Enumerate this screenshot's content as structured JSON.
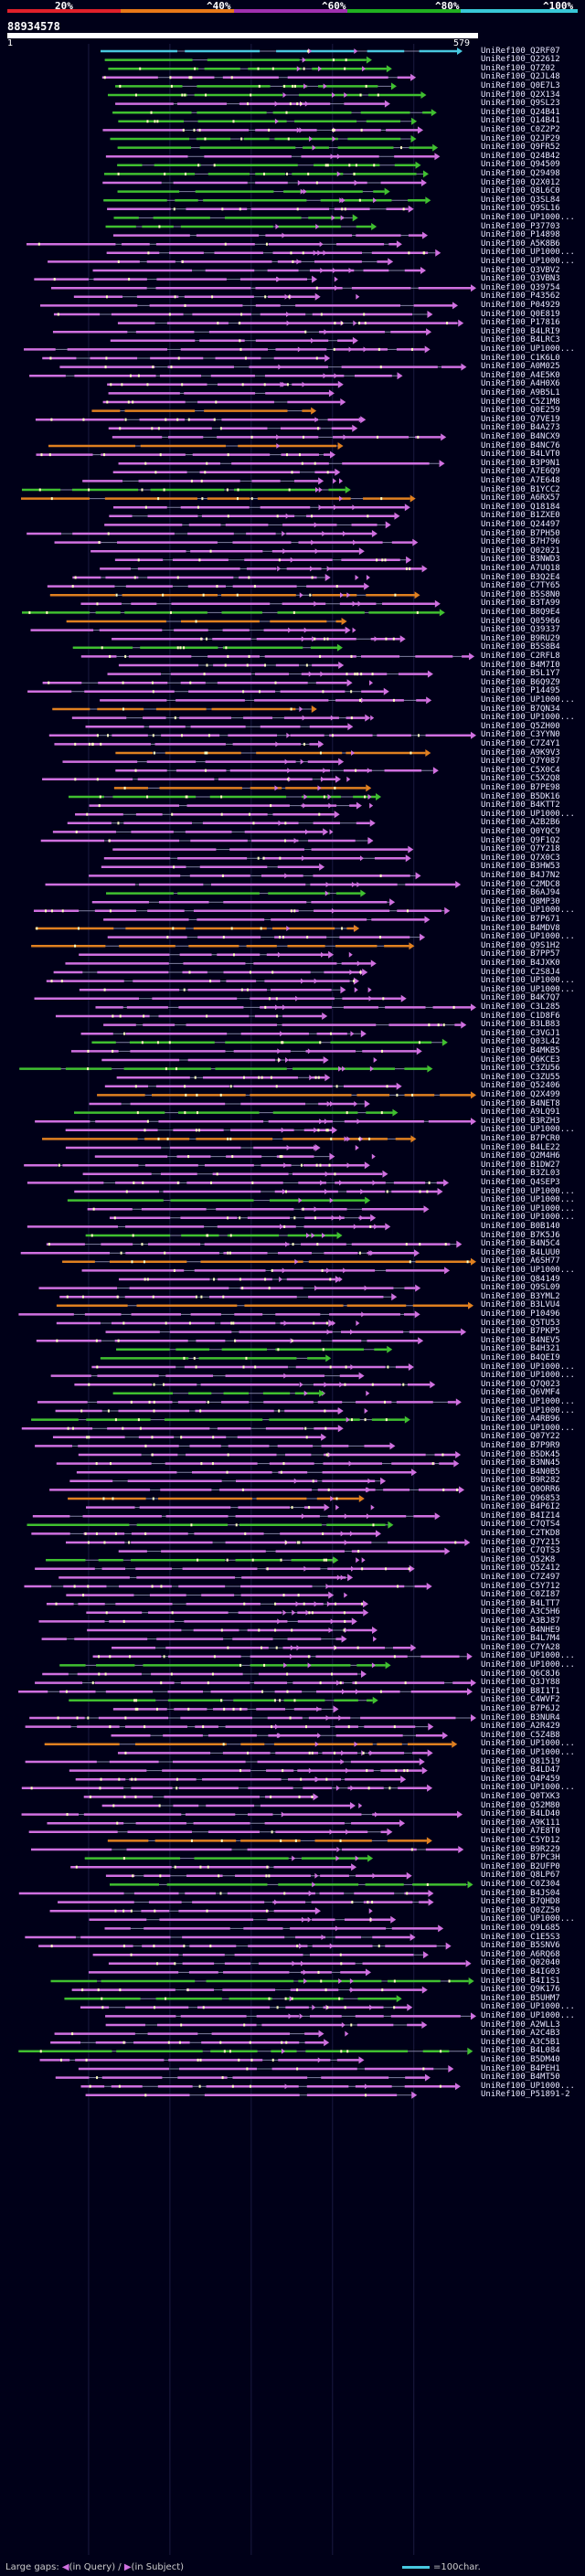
{
  "query": {
    "id": "88934578",
    "start_label": "1",
    "end_label": "579",
    "length": 579
  },
  "colors": {
    "background": "#000018",
    "identity_bins": [
      "#e0202a",
      "#e87818",
      "#a030b0",
      "#20b020",
      "#38c8d8"
    ],
    "plum": "#d070e0",
    "green": "#40c030",
    "cyan": "#48c8e0",
    "orange": "#e08020",
    "mismatch": "#ffffc0",
    "gap_line": "#8080a0"
  },
  "identity_scale": {
    "labels": [
      "20%",
      "^40%",
      "^60%",
      "^80%",
      "^100%"
    ]
  },
  "legend": {
    "large_gaps": "Large gaps: ",
    "in_query": "(in Query)",
    "in_subject": "(in Subject)",
    "scale": "=100char."
  },
  "hits": [
    "UniRef100_Q2RF07",
    "UniRef100_Q22612",
    "UniRef100_Q7Z02",
    "UniRef100_Q2JL48",
    "UniRef100_Q0E7L3",
    "UniRef100_Q2X134",
    "UniRef100_Q9SL23",
    "UniRef100_Q24B41",
    "UniRef100_Q14B41",
    "UniRef100_C0Z2P2",
    "UniRef100_Q2JP29",
    "UniRef100_Q9FR52",
    "UniRef100_Q24B42",
    "UniRef100_Q94509",
    "UniRef100_Q29498",
    "UniRef100_Q2X012",
    "UniRef100_Q8L6C0",
    "UniRef100_Q3SL84",
    "UniRef100_Q9SL16",
    "UniRef100_UP1000...",
    "UniRef100_P37703",
    "UniRef100_P14898",
    "UniRef100_A5K8B6",
    "UniRef100_UP1000...",
    "UniRef100_UP1000...",
    "UniRef100_Q3VBV2",
    "UniRef100_Q3VBN3",
    "UniRef100_Q39754",
    "UniRef100_P43562",
    "UniRef100_P04929",
    "UniRef100_Q0E819",
    "UniRef100_P17816",
    "UniRef100_B4LRI9",
    "UniRef100_B4LRC3",
    "UniRef100_UP1000...",
    "UniRef100_C1K6L0",
    "UniRef100_A0M025",
    "UniRef100_A4E5K0",
    "UniRef100_A4H0X6",
    "UniRef100_A9B5L1",
    "UniRef100_C5Z1M8",
    "UniRef100_Q0E259",
    "UniRef100_Q7VE19",
    "UniRef100_B4A273",
    "UniRef100_B4NCX9",
    "UniRef100_B4NC76",
    "UniRef100_B4LVT0",
    "UniRef100_B3P9N1",
    "UniRef100_A7E6Q9",
    "UniRef100_A7E648",
    "UniRef100_B1YCC2",
    "UniRef100_A6RX57",
    "UniRef100_Q18184",
    "UniRef100_B1ZXE0",
    "UniRef100_Q24497",
    "UniRef100_B7PH50",
    "UniRef100_B7H796",
    "UniRef100_Q02021",
    "UniRef100_B3NWD3",
    "UniRef100_A7UQ18",
    "UniRef100_B3Q2E4",
    "UniRef100_C7TY65",
    "UniRef100_B5S8N0",
    "UniRef100_B3TA99",
    "UniRef100_B8Q9E4",
    "UniRef100_Q05966",
    "UniRef100_Q39337",
    "UniRef100_B9RU29",
    "UniRef100_B5S8B4",
    "UniRef100_C2RFL8",
    "UniRef100_B4M7I0",
    "UniRef100_B5L1Y7",
    "UniRef100_B6Q9Z9",
    "UniRef100_P14495",
    "UniRef100_UP1000...",
    "UniRef100_B7QN34",
    "UniRef100_UP1000...",
    "UniRef100_Q5ZH00",
    "UniRef100_C3YYN0",
    "UniRef100_C7Z4Y1",
    "UniRef100_A9K9V3",
    "UniRef100_Q7Y087",
    "UniRef100_C5X0C4",
    "UniRef100_C5X2Q8",
    "UniRef100_B7PE98",
    "UniRef100_B5DK16",
    "UniRef100_B4KTT2",
    "UniRef100_UP1000...",
    "UniRef100_A2B2B6",
    "UniRef100_Q0YQC9",
    "UniRef100_Q9F1Q2",
    "UniRef100_Q7Y218",
    "UniRef100_Q7X0C3",
    "UniRef100_B3HW53",
    "UniRef100_B4J7N2",
    "UniRef100_C2MDC8",
    "UniRef100_B6AJ94",
    "UniRef100_Q8MP30",
    "UniRef100_UP1000...",
    "UniRef100_B7P671",
    "UniRef100_B4MDV8",
    "UniRef100_UP1000...",
    "UniRef100_Q9S1H2",
    "UniRef100_B7PP57",
    "UniRef100_B4JXK0",
    "UniRef100_C2S8J4",
    "UniRef100_UP1000...",
    "UniRef100_UP1000...",
    "UniRef100_B4K7Q7",
    "UniRef100_C3L285",
    "UniRef100_C1D8F6",
    "UniRef100_B3LB83",
    "UniRef100_C3VGJ1",
    "UniRef100_Q03L42",
    "UniRef100_B4MKB5",
    "UniRef100_Q6KCE3",
    "UniRef100_C3ZU56",
    "UniRef100_C3ZU55",
    "UniRef100_Q52406",
    "UniRef100_Q2X499",
    "UniRef100_B4NET8",
    "UniRef100_A9LQ91",
    "UniRef100_B3RZH3",
    "UniRef100_UP1000...",
    "UniRef100_B7PCR0",
    "UniRef100_B4LE22",
    "UniRef100_Q2M4H6",
    "UniRef100_B1DW27",
    "UniRef100_B3ZL03",
    "UniRef100_Q4SEP3",
    "UniRef100_UP1000...",
    "UniRef100_UP1000...",
    "UniRef100_UP1000...",
    "UniRef100_UP1000...",
    "UniRef100_B0B140",
    "UniRef100_B7K5J6",
    "UniRef100_B4N5C4",
    "UniRef100_B4LUU0",
    "UniRef100_A6SH77",
    "UniRef100_UP1000...",
    "UniRef100_Q84149",
    "UniRef100_Q9SL09",
    "UniRef100_B3YML2",
    "UniRef100_B3LVU4",
    "UniRef100_P10496",
    "UniRef100_Q5TU53",
    "UniRef100_B7PKP5",
    "UniRef100_B4NEV5",
    "UniRef100_B4H321",
    "UniRef100_B4QEI9",
    "UniRef100_UP1000...",
    "UniRef100_UP1000...",
    "UniRef100_Q7Q023",
    "UniRef100_Q6VMF4",
    "UniRef100_UP1000...",
    "UniRef100_UP1000...",
    "UniRef100_A4RB96",
    "UniRef100_UP1000...",
    "UniRef100_Q07Y22",
    "UniRef100_B7P9R9",
    "UniRef100_B5DK45",
    "UniRef100_B3NN45",
    "UniRef100_B4N0B5",
    "UniRef100_B9R282",
    "UniRef100_Q0ORR6",
    "UniRef100_Q96853",
    "UniRef100_B4P6I2",
    "UniRef100_B4IZ14",
    "UniRef100_C7QTS4",
    "UniRef100_C2TKD8",
    "UniRef100_Q7Y215",
    "UniRef100_C7QTS3",
    "UniRef100_Q52K8",
    "UniRef100_Q5Z412",
    "UniRef100_C7Z497",
    "UniRef100_C5Y712",
    "UniRef100_C0ZI87",
    "UniRef100_B4LTT7",
    "UniRef100_A3C5H6",
    "UniRef100_A3BJ87",
    "UniRef100_B4NHE9",
    "UniRef100_B4L7M4",
    "UniRef100_C7YA28",
    "UniRef100_UP1000...",
    "UniRef100_UP1000...",
    "UniRef100_Q6C8J6",
    "UniRef100_Q3JY88",
    "UniRef100_B8I1T1",
    "UniRef100_C4WVF2",
    "UniRef100_B7P6J2",
    "UniRef100_B3NUR4",
    "UniRef100_A2R429",
    "UniRef100_C5Z4B8",
    "UniRef100_UP1000...",
    "UniRef100_UP1000...",
    "UniRef100_Q81519",
    "UniRef100_B4LD47",
    "UniRef100_Q4P459",
    "UniRef100_UP1000...",
    "UniRef100_Q0TXK3",
    "UniRef100_Q52M80",
    "UniRef100_B4LD40",
    "UniRef100_A9K111",
    "UniRef100_A7E8T0",
    "UniRef100_C5YD12",
    "UniRef100_B9R229",
    "UniRef100_B7PC3H",
    "UniRef100_B2UFP0",
    "UniRef100_Q8LP67",
    "UniRef100_C0Z304",
    "UniRef100_B4JS04",
    "UniRef100_B7QHD8",
    "UniRef100_Q0ZZ50",
    "UniRef100_UP1000...",
    "UniRef100_Q9L685",
    "UniRef100_C1E5S3",
    "UniRef100_B5SNV6",
    "UniRef100_A6RQ68",
    "UniRef100_Q02040",
    "UniRef100_B4IG03",
    "UniRef100_B4I1S1",
    "UniRef100_Q9K176",
    "UniRef100_B5UHM7",
    "UniRef100_UP1000...",
    "UniRef100_UP1000...",
    "UniRef100_A2WLL3",
    "UniRef100_A2C4B3",
    "UniRef100_A3C5B1",
    "UniRef100_B4L084",
    "UniRef100_B5DM40",
    "UniRef100_B4PEH1",
    "UniRef100_B4MT50",
    "UniRef100_UP1000...",
    "UniRef100_P51891-2"
  ]
}
